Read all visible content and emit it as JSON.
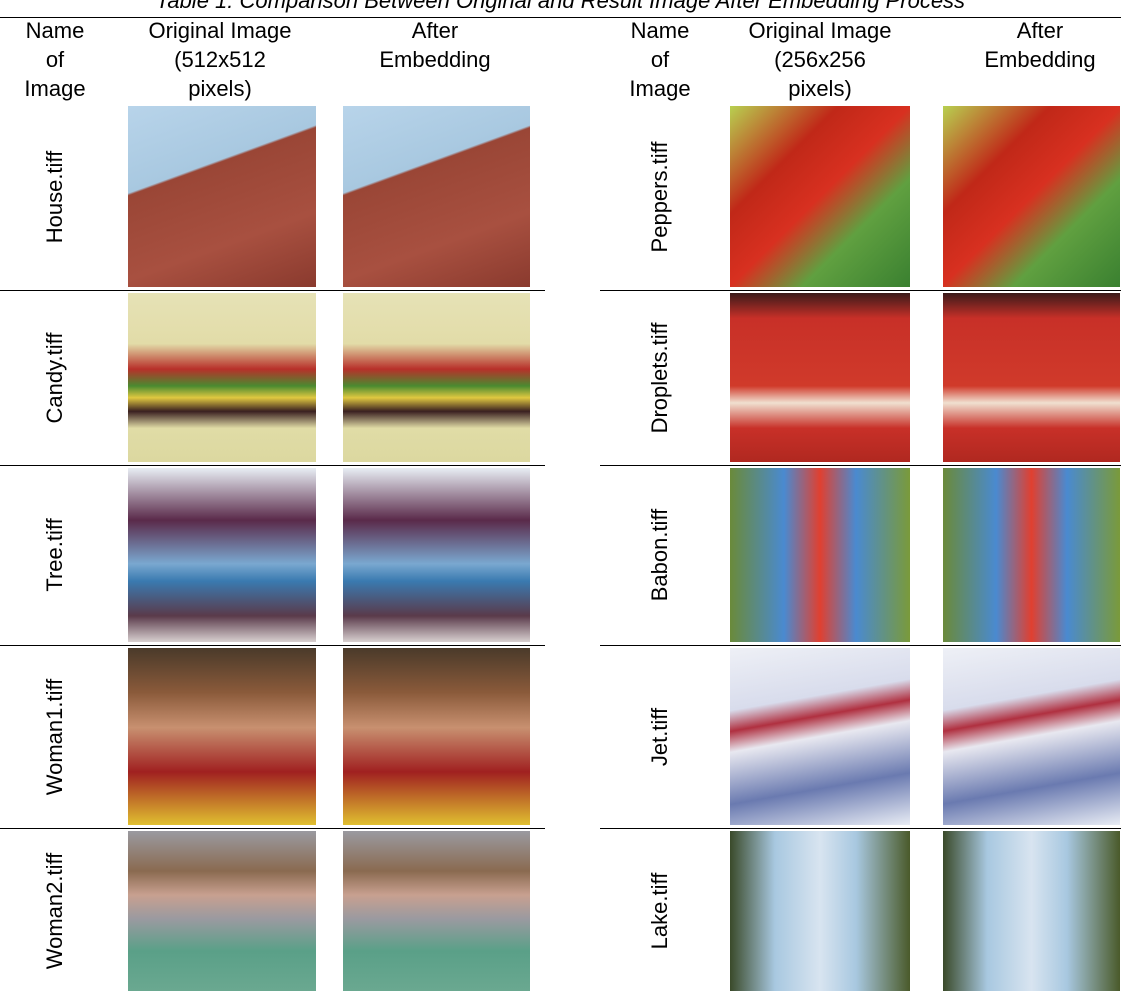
{
  "title": "Table 1: Comparison Between Original and Result Image After Embedding Process",
  "tables": [
    {
      "header": [
        [
          "Name",
          "of",
          "Image"
        ],
        [
          "Original Image",
          "(512x512",
          "pixels)"
        ],
        [
          "After",
          "Embedding"
        ]
      ],
      "rows": [
        "House.tiff",
        "Candy.tiff",
        "Tree.tiff",
        "Woman1.tiff",
        "Woman2.tiff"
      ]
    },
    {
      "header": [
        [
          "Name",
          "of",
          "Image"
        ],
        [
          "Original Image",
          "(256x256",
          "pixels)"
        ],
        [
          "After",
          "Embedding"
        ]
      ],
      "rows": [
        "Peppers.tiff",
        "Droplets.tiff",
        "Babon.tiff",
        "Jet.tiff",
        "Lake.tiff"
      ]
    }
  ]
}
